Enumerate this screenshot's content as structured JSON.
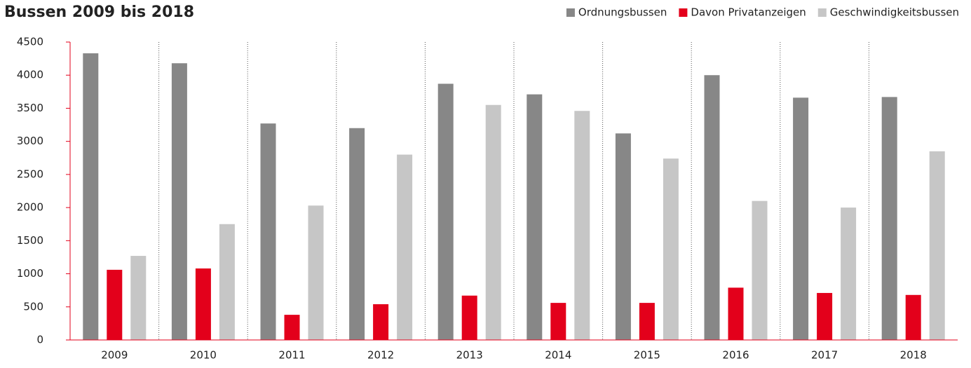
{
  "chart_data": {
    "type": "bar",
    "title": "Bussen 2009 bis 2018",
    "categories": [
      "2009",
      "2010",
      "2011",
      "2012",
      "2013",
      "2014",
      "2015",
      "2016",
      "2017",
      "2018"
    ],
    "series": [
      {
        "name": "Ordnungsbussen",
        "color": "#878787",
        "values": [
          4330,
          4180,
          3270,
          3200,
          3870,
          3710,
          3120,
          4000,
          3660,
          3670
        ]
      },
      {
        "name": "Davon Privatanzeigen",
        "color": "#e3001b",
        "values": [
          1060,
          1080,
          380,
          540,
          670,
          560,
          560,
          790,
          710,
          680
        ]
      },
      {
        "name": "Geschwindigkeitsbussen",
        "color": "#c6c6c6",
        "values": [
          1270,
          1750,
          2030,
          2800,
          3550,
          3460,
          2740,
          2100,
          2000,
          2850
        ]
      }
    ],
    "ylim": [
      0,
      4500
    ],
    "yticks": [
      0,
      500,
      1000,
      1500,
      2000,
      2500,
      3000,
      3500,
      4000,
      4500
    ],
    "legend": "top-right"
  }
}
